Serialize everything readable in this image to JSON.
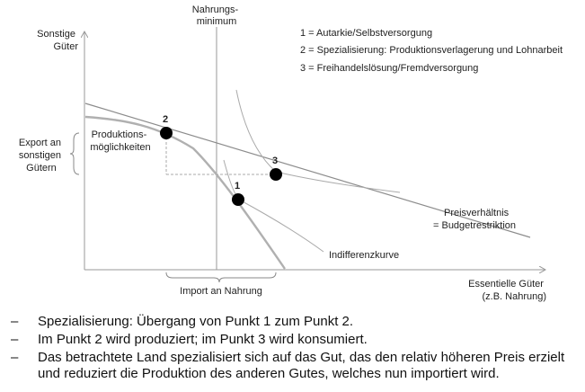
{
  "diagram": {
    "axis_y_label": [
      "Sonstige",
      "Güter"
    ],
    "axis_x_label": [
      "Essentielle Güter",
      "(z.B. Nahrung)"
    ],
    "nahrungsminimum_label": [
      "Nahrungs-",
      "minimum"
    ],
    "legend": [
      "1 = Autarkie/Selbstversorgung",
      "2 = Spezialisierung: Produktionsverlagerung und Lohnarbeit",
      "3 = Freihandelslösung/Fremdversorgung"
    ],
    "produktions_label": [
      "Produktions-",
      "möglichkeiten"
    ],
    "export_label": [
      "Export an",
      "sonstigen",
      "Gütern"
    ],
    "import_label": "Import an Nahrung",
    "preis_label": [
      "Preisverhältnis",
      "= Budgetrestriktion"
    ],
    "indifferenz_label": "Indifferenzkurve",
    "points": {
      "p1": "1",
      "p2": "2",
      "p3": "3"
    }
  },
  "bullets": [
    "Spezialisierung: Übergang von Punkt 1 zum Punkt 2.",
    "Im Punkt 2 wird produziert; im Punkt 3 wird konsumiert.",
    "Das betrachtete Land spezialisiert sich auf das Gut, das den relativ höheren Preis erzielt und reduziert die Produktion des anderen Gutes, welches nun importiert wird."
  ],
  "bullet_dash": "–"
}
